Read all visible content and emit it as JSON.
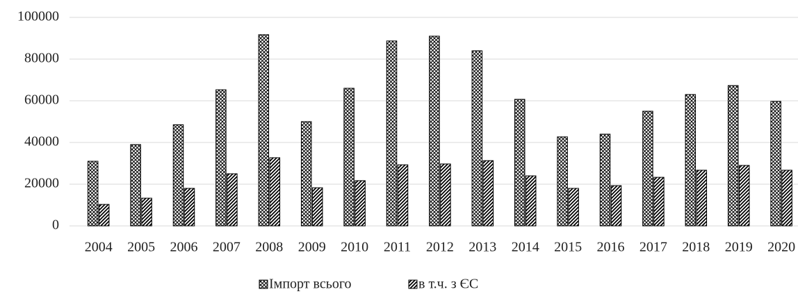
{
  "chart_data": {
    "type": "bar",
    "categories": [
      "2004",
      "2005",
      "2006",
      "2007",
      "2008",
      "2009",
      "2010",
      "2011",
      "2012",
      "2013",
      "2014",
      "2015",
      "2016",
      "2017",
      "2018",
      "2019",
      "2020"
    ],
    "series": [
      {
        "name": "Імпорт всього",
        "color": "#000000",
        "values": [
          31000,
          39000,
          48500,
          65300,
          91700,
          50000,
          66000,
          88700,
          91000,
          84000,
          60700,
          42700,
          44000,
          55000,
          63000,
          67300,
          59700
        ]
      },
      {
        "name": "в т.ч. з ЄС",
        "color": "#000000",
        "values": [
          10300,
          13300,
          18000,
          25000,
          32700,
          18300,
          21700,
          29300,
          29700,
          31300,
          24000,
          18000,
          19300,
          23300,
          26700,
          29000,
          26700
        ]
      }
    ],
    "ylim": [
      0,
      100000
    ],
    "yticks": [
      0,
      20000,
      40000,
      60000,
      80000,
      100000
    ],
    "grid": true
  }
}
